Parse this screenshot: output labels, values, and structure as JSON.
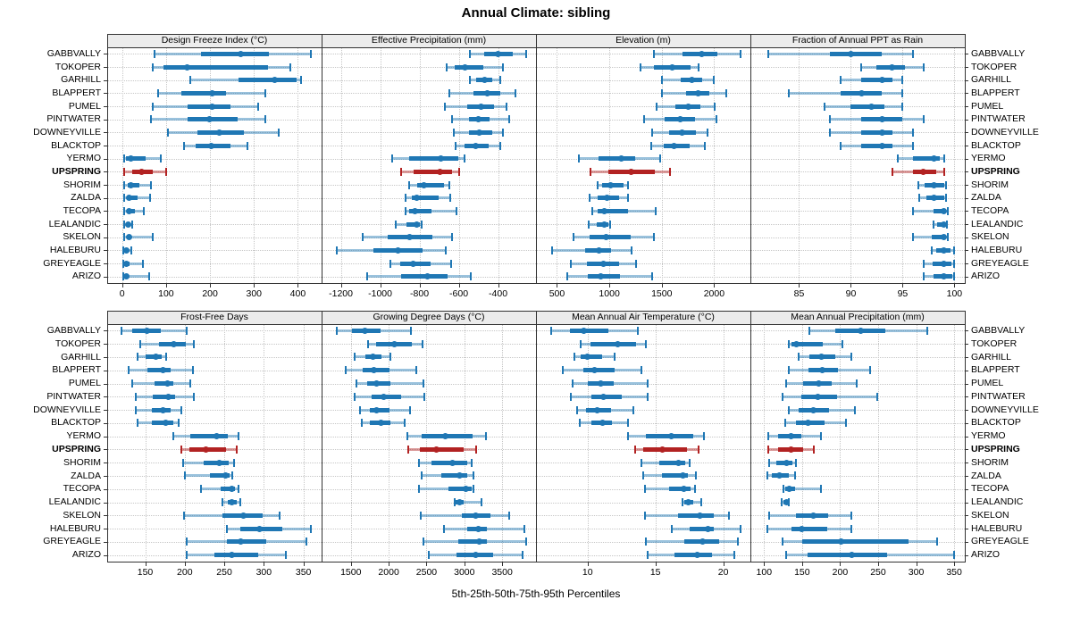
{
  "title": "Annual Climate: sibling",
  "caption": "5th-25th-50th-75th-95th Percentiles",
  "percentile_labels": [
    "5th",
    "25th",
    "50th",
    "75th",
    "95th"
  ],
  "stations": [
    "GABBVALLY",
    "TOKOPER",
    "GARHILL",
    "BLAPPERT",
    "PUMEL",
    "PINTWATER",
    "DOWNEYVILLE",
    "BLACKTOP",
    "YERMO",
    "UPSPRING",
    "SHORIM",
    "ZALDA",
    "TECOPA",
    "LEALANDIC",
    "SKELON",
    "HALEBURU",
    "GREYEAGLE",
    "ARIZO"
  ],
  "highlight_station": "UPSPRING",
  "colors": {
    "series": "#1f77b4",
    "series_light": "rgba(31,119,180,0.45)",
    "highlight": "#b22222",
    "highlight_light": "rgba(178,34,34,0.45)",
    "strip_bg": "#ececec",
    "border": "#333333",
    "grid": "#c6c6c6"
  },
  "chart_data": [
    {
      "type": "dotplot-percentiles",
      "panel": "Design Freeze Index (°C)",
      "grid_row": 0,
      "grid_col": 0,
      "axis": {
        "domain": [
          -34,
          454
        ],
        "ticks": [
          0,
          100,
          200,
          300,
          400
        ]
      },
      "series": [
        [
          73,
          180,
          270,
          335,
          430
        ],
        [
          70,
          95,
          148,
          332,
          382
        ],
        [
          155,
          265,
          347,
          398,
          408
        ],
        [
          81,
          134,
          205,
          236,
          325
        ],
        [
          70,
          148,
          205,
          246,
          309
        ],
        [
          65,
          149,
          199,
          262,
          325
        ],
        [
          104,
          172,
          221,
          277,
          357
        ],
        [
          140,
          167,
          203,
          246,
          285
        ],
        [
          4,
          9,
          20,
          54,
          88
        ],
        [
          5,
          22,
          45,
          70,
          100
        ],
        [
          5,
          13,
          20,
          40,
          66
        ],
        [
          4,
          10,
          16,
          35,
          64
        ],
        [
          4,
          10,
          15,
          30,
          50
        ],
        [
          4,
          8,
          13,
          18,
          23
        ],
        [
          4,
          10,
          15,
          21,
          70
        ],
        [
          2,
          5,
          9,
          13,
          21
        ],
        [
          2,
          6,
          10,
          16,
          48
        ],
        [
          2,
          6,
          9,
          13,
          62
        ]
      ]
    },
    {
      "type": "dotplot-percentiles",
      "panel": "Effective Precipitation (mm)",
      "grid_row": 0,
      "grid_col": 1,
      "axis": {
        "domain": [
          -1298,
          -207
        ],
        "ticks": [
          -1200,
          -1000,
          -800,
          -600,
          -400
        ]
      },
      "series": [
        [
          -545,
          -470,
          -400,
          -325,
          -255
        ],
        [
          -660,
          -620,
          -568,
          -475,
          -375
        ],
        [
          -545,
          -510,
          -470,
          -430,
          -390
        ],
        [
          -650,
          -525,
          -457,
          -390,
          -310
        ],
        [
          -670,
          -555,
          -488,
          -420,
          -355
        ],
        [
          -635,
          -550,
          -500,
          -445,
          -345
        ],
        [
          -625,
          -550,
          -495,
          -430,
          -375
        ],
        [
          -615,
          -570,
          -515,
          -450,
          -390
        ],
        [
          -940,
          -853,
          -690,
          -603,
          -570
        ],
        [
          -895,
          -830,
          -695,
          -633,
          -600
        ],
        [
          -853,
          -810,
          -776,
          -676,
          -649
        ],
        [
          -870,
          -838,
          -812,
          -701,
          -645
        ],
        [
          -870,
          -852,
          -823,
          -737,
          -612
        ],
        [
          -920,
          -865,
          -815,
          -797,
          -788
        ],
        [
          -1090,
          -963,
          -848,
          -733,
          -636
        ],
        [
          -1220,
          -1035,
          -908,
          -785,
          -667
        ],
        [
          -948,
          -898,
          -833,
          -742,
          -641
        ],
        [
          -1065,
          -894,
          -758,
          -656,
          -540
        ]
      ]
    },
    {
      "type": "dotplot-percentiles",
      "panel": "Elevation (m)",
      "grid_row": 0,
      "grid_col": 2,
      "axis": {
        "domain": [
          300,
          2346
        ],
        "ticks": [
          500,
          1000,
          1500,
          2000
        ]
      },
      "series": [
        [
          1425,
          1700,
          1880,
          2030,
          2250
        ],
        [
          1300,
          1425,
          1600,
          1775,
          1850
        ],
        [
          1500,
          1680,
          1790,
          1885,
          1995
        ],
        [
          1505,
          1730,
          1845,
          1955,
          2120
        ],
        [
          1455,
          1630,
          1750,
          1870,
          2005
        ],
        [
          1330,
          1525,
          1680,
          1815,
          2025
        ],
        [
          1410,
          1570,
          1695,
          1830,
          1940
        ],
        [
          1400,
          1515,
          1615,
          1765,
          1915
        ],
        [
          705,
          900,
          1115,
          1245,
          1485
        ],
        [
          820,
          990,
          1210,
          1430,
          1580
        ],
        [
          885,
          935,
          1010,
          1135,
          1175
        ],
        [
          810,
          890,
          975,
          1095,
          1180
        ],
        [
          835,
          885,
          950,
          1180,
          1445
        ],
        [
          805,
          880,
          955,
          990,
          1005
        ],
        [
          660,
          810,
          965,
          1200,
          1425
        ],
        [
          450,
          765,
          900,
          1020,
          1210
        ],
        [
          630,
          785,
          945,
          1090,
          1255
        ],
        [
          600,
          795,
          915,
          1105,
          1410
        ]
      ]
    },
    {
      "type": "dotplot-percentiles",
      "panel": "Fraction of Annual PPT as Rain",
      "grid_row": 0,
      "grid_col": 3,
      "axis": {
        "domain": [
          80.3,
          101
        ],
        "ticks": [
          85,
          90,
          95,
          100
        ]
      },
      "series": [
        [
          82,
          88,
          90,
          93,
          96
        ],
        [
          91,
          92.5,
          94,
          95.2,
          97
        ],
        [
          89,
          91,
          93,
          94,
          95
        ],
        [
          84,
          89,
          91,
          93,
          95
        ],
        [
          87.5,
          90,
          92,
          93.2,
          95
        ],
        [
          88,
          91,
          93,
          95,
          97
        ],
        [
          88,
          91,
          93,
          94,
          96
        ],
        [
          89,
          91,
          93,
          94,
          96
        ],
        [
          94.5,
          96,
          98,
          98.6,
          99
        ],
        [
          94,
          96,
          97,
          98.2,
          99
        ],
        [
          96.5,
          97.1,
          98,
          99,
          99.2
        ],
        [
          96.6,
          97.3,
          98,
          99,
          99.2
        ],
        [
          96,
          98,
          99,
          99.2,
          99.4
        ],
        [
          98,
          98.3,
          99,
          99.2,
          99.3
        ],
        [
          96,
          97.8,
          99,
          99.2,
          99.4
        ],
        [
          97.8,
          98.2,
          99,
          99.6,
          100
        ],
        [
          97,
          97.9,
          99,
          99.7,
          100
        ],
        [
          97,
          98,
          99,
          99.8,
          100
        ]
      ]
    },
    {
      "type": "dotplot-percentiles",
      "panel": "Frost-Free Days",
      "grid_row": 1,
      "grid_col": 0,
      "axis": {
        "domain": [
          102,
          373
        ],
        "ticks": [
          150,
          200,
          250,
          300,
          350
        ]
      },
      "series": [
        [
          120,
          134,
          152,
          170,
          203
        ],
        [
          144,
          167,
          186,
          201,
          212
        ],
        [
          140,
          151,
          164,
          171,
          177
        ],
        [
          129,
          153,
          173,
          182,
          210
        ],
        [
          134,
          162,
          178,
          186,
          207
        ],
        [
          138,
          160,
          179,
          188,
          211
        ],
        [
          138,
          158,
          173,
          182,
          196
        ],
        [
          140,
          158,
          176,
          185,
          192
        ],
        [
          185,
          207,
          240,
          255,
          268
        ],
        [
          196,
          206,
          227,
          252,
          266
        ],
        [
          198,
          224,
          244,
          256,
          262
        ],
        [
          200,
          232,
          252,
          257,
          260
        ],
        [
          221,
          245,
          260,
          264,
          268
        ],
        [
          248,
          254,
          259,
          266,
          270
        ],
        [
          199,
          248,
          274,
          299,
          320
        ],
        [
          253,
          270,
          294,
          323,
          359
        ],
        [
          202,
          253,
          271,
          303,
          354
        ],
        [
          203,
          238,
          260,
          293,
          328
        ]
      ]
    },
    {
      "type": "dotplot-percentiles",
      "panel": "Growing Degree Days (°C)",
      "grid_row": 1,
      "grid_col": 1,
      "axis": {
        "domain": [
          1113,
          3947
        ],
        "ticks": [
          1500,
          2000,
          2500,
          3000,
          3500
        ]
      },
      "series": [
        [
          1310,
          1520,
          1690,
          1890,
          2295
        ],
        [
          1730,
          1835,
          2070,
          2300,
          2450
        ],
        [
          1545,
          1690,
          1795,
          1900,
          2020
        ],
        [
          1430,
          1655,
          1805,
          2005,
          2360
        ],
        [
          1570,
          1715,
          1845,
          2020,
          2465
        ],
        [
          1545,
          1770,
          1930,
          2160,
          2475
        ],
        [
          1625,
          1745,
          1845,
          2005,
          2280
        ],
        [
          1650,
          1755,
          1900,
          2020,
          2215
        ],
        [
          2250,
          2435,
          2750,
          3105,
          3290
        ],
        [
          2255,
          2415,
          2635,
          2990,
          3155
        ],
        [
          2400,
          2570,
          2845,
          3040,
          3095
        ],
        [
          2435,
          2700,
          2935,
          3040,
          3120
        ],
        [
          2400,
          2790,
          3015,
          3095,
          3120
        ],
        [
          2870,
          2885,
          2935,
          2990,
          3225
        ],
        [
          2425,
          2965,
          3145,
          3340,
          3595
        ],
        [
          2730,
          3035,
          3185,
          3300,
          3790
        ],
        [
          2465,
          2915,
          3200,
          3300,
          3815
        ],
        [
          2530,
          2900,
          3145,
          3380,
          3775
        ]
      ]
    },
    {
      "type": "dotplot-percentiles",
      "panel": "Mean Annual Air Temperature (°C)",
      "grid_row": 1,
      "grid_col": 2,
      "axis": {
        "domain": [
          6.2,
          22
        ],
        "ticks": [
          10,
          15,
          20
        ]
      },
      "series": [
        [
          7.3,
          8.7,
          9.7,
          11.5,
          13.7
        ],
        [
          9.5,
          10.2,
          12.2,
          13.6,
          14.3
        ],
        [
          9,
          9.5,
          10,
          11.1,
          12
        ],
        [
          8.2,
          9.7,
          10.5,
          12,
          14
        ],
        [
          8.9,
          10,
          11,
          11.9,
          14.4
        ],
        [
          8.8,
          10.3,
          11.2,
          12.5,
          14.4
        ],
        [
          9.2,
          9.9,
          10.7,
          11.7,
          13.4
        ],
        [
          9.4,
          10.3,
          11.1,
          11.8,
          13
        ],
        [
          13,
          14.3,
          16.2,
          17.8,
          18.6
        ],
        [
          13.5,
          14.1,
          15.5,
          17.3,
          18.2
        ],
        [
          14,
          15.3,
          16.7,
          17.2,
          17.5
        ],
        [
          14.1,
          15.5,
          17,
          17.4,
          18
        ],
        [
          14.2,
          16,
          17.1,
          17.6,
          17.9
        ],
        [
          17,
          17.1,
          17.4,
          17.8,
          18.4
        ],
        [
          14.2,
          16.7,
          18.3,
          19.3,
          20.4
        ],
        [
          16.2,
          17.5,
          18.9,
          19.3,
          21.3
        ],
        [
          14.3,
          17.1,
          18.5,
          19.7,
          21.1
        ],
        [
          14.4,
          16.4,
          18.1,
          19.2,
          20.8
        ]
      ]
    },
    {
      "type": "dotplot-percentiles",
      "panel": "Mean Annual Precipitation (mm)",
      "grid_row": 1,
      "grid_col": 3,
      "axis": {
        "domain": [
          82,
          364
        ],
        "ticks": [
          100,
          150,
          200,
          250,
          300,
          350
        ]
      },
      "series": [
        [
          159,
          194,
          227,
          260,
          315
        ],
        [
          133,
          136,
          142,
          177,
          203
        ],
        [
          146,
          160,
          175,
          194,
          215
        ],
        [
          132,
          158,
          177,
          197,
          239
        ],
        [
          129,
          151,
          172,
          189,
          222
        ],
        [
          124,
          149,
          171,
          196,
          249
        ],
        [
          132,
          146,
          165,
          186,
          219
        ],
        [
          128,
          142,
          158,
          180,
          208
        ],
        [
          106,
          119,
          136,
          149,
          175
        ],
        [
          106,
          119,
          136,
          151,
          165
        ],
        [
          107,
          116,
          129,
          137,
          142
        ],
        [
          104,
          110,
          120,
          133,
          141
        ],
        [
          125,
          128,
          133,
          141,
          175
        ],
        [
          123,
          125,
          129,
          132,
          133
        ],
        [
          107,
          142,
          165,
          184,
          215
        ],
        [
          104,
          136,
          150,
          183,
          215
        ],
        [
          124,
          150,
          201,
          290,
          327
        ],
        [
          129,
          157,
          215,
          262,
          350
        ]
      ]
    }
  ]
}
